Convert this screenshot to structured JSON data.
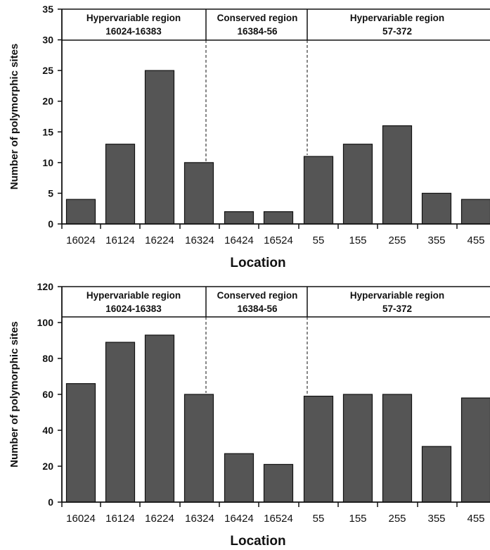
{
  "colors": {
    "bar": "#555555",
    "bar_stroke": "#111111",
    "axis": "#111111"
  },
  "chart_data": [
    {
      "type": "bar",
      "categories": [
        "16024",
        "16124",
        "16224",
        "16324",
        "16424",
        "16524",
        "55",
        "155",
        "255",
        "355",
        "455"
      ],
      "values": [
        4,
        13,
        25,
        10,
        2,
        2,
        11,
        13,
        16,
        5,
        4
      ],
      "xlabel": "Location",
      "ylabel": "Number of polymorphic sites",
      "ylim": [
        0,
        35
      ],
      "yticks": [
        0,
        5,
        10,
        15,
        20,
        25,
        30,
        35
      ],
      "regions": [
        {
          "line1": "Hypervariable region",
          "line2": "16024-16383"
        },
        {
          "line1": "Conserved region",
          "line2": "16384-56"
        },
        {
          "line1": "Hypervariable region",
          "line2": "57-372"
        }
      ]
    },
    {
      "type": "bar",
      "categories": [
        "16024",
        "16124",
        "16224",
        "16324",
        "16424",
        "16524",
        "55",
        "155",
        "255",
        "355",
        "455"
      ],
      "values": [
        66,
        89,
        93,
        60,
        27,
        21,
        59,
        60,
        60,
        31,
        58
      ],
      "xlabel": "Location",
      "ylabel": "Number of polymorphic sites",
      "ylim": [
        0,
        120
      ],
      "yticks": [
        0,
        20,
        40,
        60,
        80,
        100,
        120
      ],
      "regions": [
        {
          "line1": "Hypervariable region",
          "line2": "16024-16383"
        },
        {
          "line1": "Conserved region",
          "line2": "16384-56"
        },
        {
          "line1": "Hypervariable region",
          "line2": "57-372"
        }
      ]
    }
  ]
}
